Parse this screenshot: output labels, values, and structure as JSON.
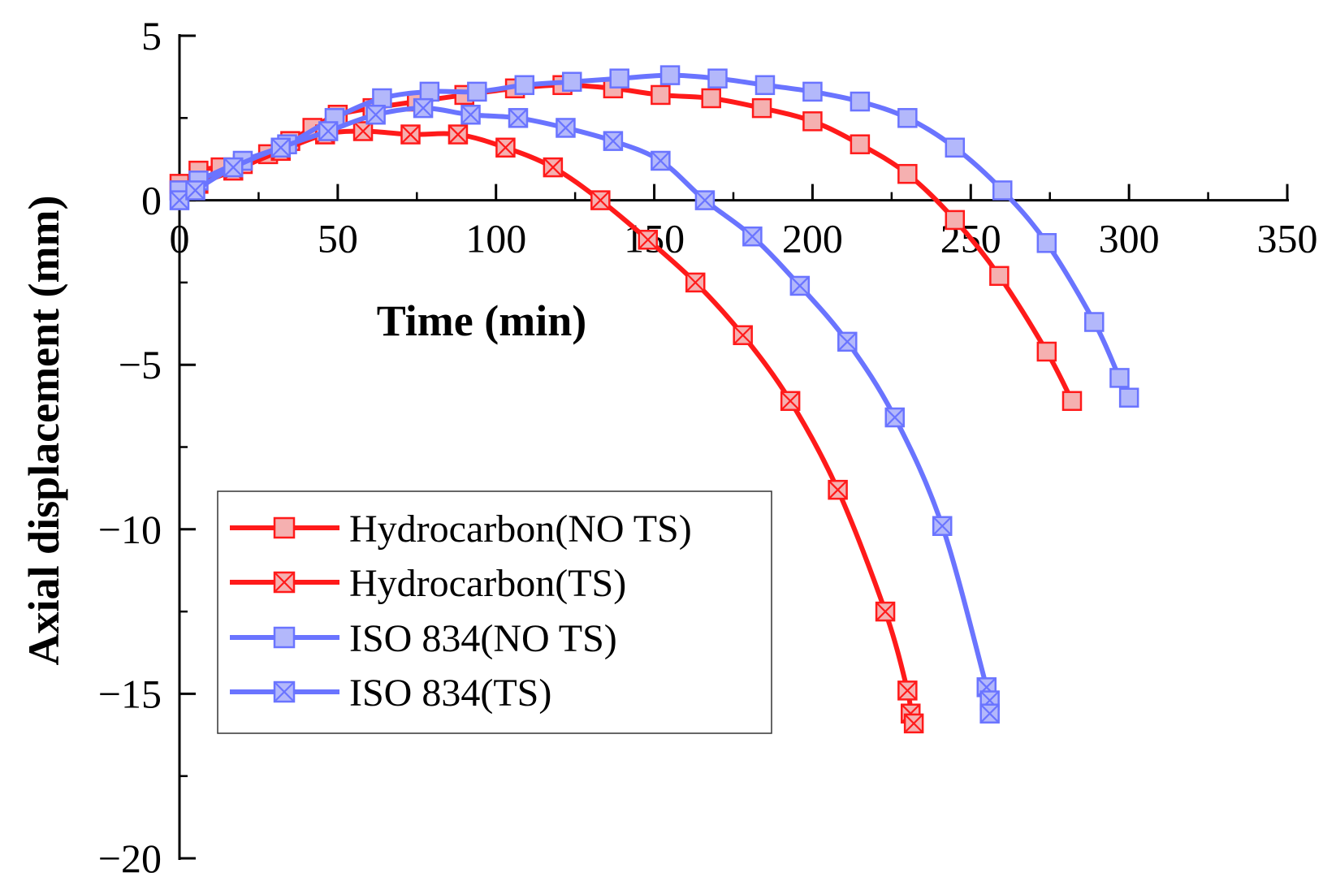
{
  "chart_data": {
    "type": "line",
    "title": "",
    "xlabel": "Time (min)",
    "ylabel": "Axial displacement (mm)",
    "xlim": [
      0,
      350
    ],
    "ylim": [
      -20,
      5
    ],
    "x_ticks": [
      {
        "value": 0,
        "label": "0"
      },
      {
        "value": 50,
        "label": "50"
      },
      {
        "value": 100,
        "label": "100"
      },
      {
        "value": 150,
        "label": "150"
      },
      {
        "value": 200,
        "label": "200"
      },
      {
        "value": 250,
        "label": "250"
      },
      {
        "value": 300,
        "label": "300"
      },
      {
        "value": 350,
        "label": "350"
      }
    ],
    "y_ticks": [
      {
        "value": 5,
        "label": "5"
      },
      {
        "value": 0,
        "label": "0"
      },
      {
        "value": -5,
        "label": "−5"
      },
      {
        "value": -10,
        "label": "−10"
      },
      {
        "value": -15,
        "label": "−15"
      },
      {
        "value": -20,
        "label": "−20"
      }
    ],
    "grid": false,
    "legend_position": "lower-left",
    "series": [
      {
        "name": "Hydrocarbon(NO TS)",
        "color": "#ff1a1a",
        "marker_fill": "#f5b0b0",
        "marker": "square",
        "points": [
          [
            0,
            0.5
          ],
          [
            6,
            0.9
          ],
          [
            13,
            1.0
          ],
          [
            20,
            1.1
          ],
          [
            28,
            1.4
          ],
          [
            35,
            1.8
          ],
          [
            42,
            2.2
          ],
          [
            50,
            2.6
          ],
          [
            61,
            2.8
          ],
          [
            75,
            3.0
          ],
          [
            90,
            3.2
          ],
          [
            106,
            3.4
          ],
          [
            121,
            3.5
          ],
          [
            137,
            3.4
          ],
          [
            152,
            3.2
          ],
          [
            168,
            3.1
          ],
          [
            184,
            2.8
          ],
          [
            200,
            2.4
          ],
          [
            215,
            1.7
          ],
          [
            230,
            0.8
          ],
          [
            245,
            -0.6
          ],
          [
            259,
            -2.3
          ],
          [
            274,
            -4.6
          ],
          [
            282,
            -6.1
          ]
        ]
      },
      {
        "name": "Hydrocarbon(TS)",
        "color": "#ff1a1a",
        "marker_fill": "#f5b0b0",
        "marker": "square-x",
        "points": [
          [
            0,
            0.3
          ],
          [
            6,
            0.5
          ],
          [
            17,
            0.9
          ],
          [
            32,
            1.5
          ],
          [
            46,
            2.0
          ],
          [
            58,
            2.1
          ],
          [
            73,
            2.0
          ],
          [
            88,
            2.0
          ],
          [
            103,
            1.6
          ],
          [
            118,
            1.0
          ],
          [
            133,
            0.0
          ],
          [
            148,
            -1.2
          ],
          [
            163,
            -2.5
          ],
          [
            178,
            -4.1
          ],
          [
            193,
            -6.1
          ],
          [
            208,
            -8.8
          ],
          [
            223,
            -12.5
          ],
          [
            230,
            -14.9
          ],
          [
            231,
            -15.6
          ],
          [
            232,
            -15.9
          ]
        ]
      },
      {
        "name": "ISO 834(NO TS)",
        "color": "#6a74ff",
        "marker_fill": "#b3b8fb",
        "marker": "square",
        "points": [
          [
            0,
            0.3
          ],
          [
            6,
            0.6
          ],
          [
            20,
            1.2
          ],
          [
            34,
            1.7
          ],
          [
            49,
            2.5
          ],
          [
            64,
            3.1
          ],
          [
            79,
            3.3
          ],
          [
            94,
            3.3
          ],
          [
            109,
            3.5
          ],
          [
            124,
            3.6
          ],
          [
            139,
            3.7
          ],
          [
            155,
            3.8
          ],
          [
            170,
            3.7
          ],
          [
            185,
            3.5
          ],
          [
            200,
            3.3
          ],
          [
            215,
            3.0
          ],
          [
            230,
            2.5
          ],
          [
            245,
            1.6
          ],
          [
            260,
            0.3
          ],
          [
            274,
            -1.3
          ],
          [
            289,
            -3.7
          ],
          [
            297,
            -5.4
          ],
          [
            300,
            -6.0
          ]
        ]
      },
      {
        "name": "ISO 834(TS)",
        "color": "#6a74ff",
        "marker_fill": "#b3b8fb",
        "marker": "square-x",
        "points": [
          [
            0,
            0.0
          ],
          [
            5,
            0.3
          ],
          [
            17,
            1.0
          ],
          [
            32,
            1.6
          ],
          [
            47,
            2.1
          ],
          [
            62,
            2.6
          ],
          [
            77,
            2.8
          ],
          [
            92,
            2.6
          ],
          [
            107,
            2.5
          ],
          [
            122,
            2.2
          ],
          [
            137,
            1.8
          ],
          [
            152,
            1.2
          ],
          [
            166,
            0.0
          ],
          [
            181,
            -1.1
          ],
          [
            196,
            -2.6
          ],
          [
            211,
            -4.3
          ],
          [
            226,
            -6.6
          ],
          [
            241,
            -9.9
          ],
          [
            255,
            -14.8
          ],
          [
            256,
            -15.2
          ],
          [
            256,
            -15.6
          ]
        ]
      }
    ]
  }
}
